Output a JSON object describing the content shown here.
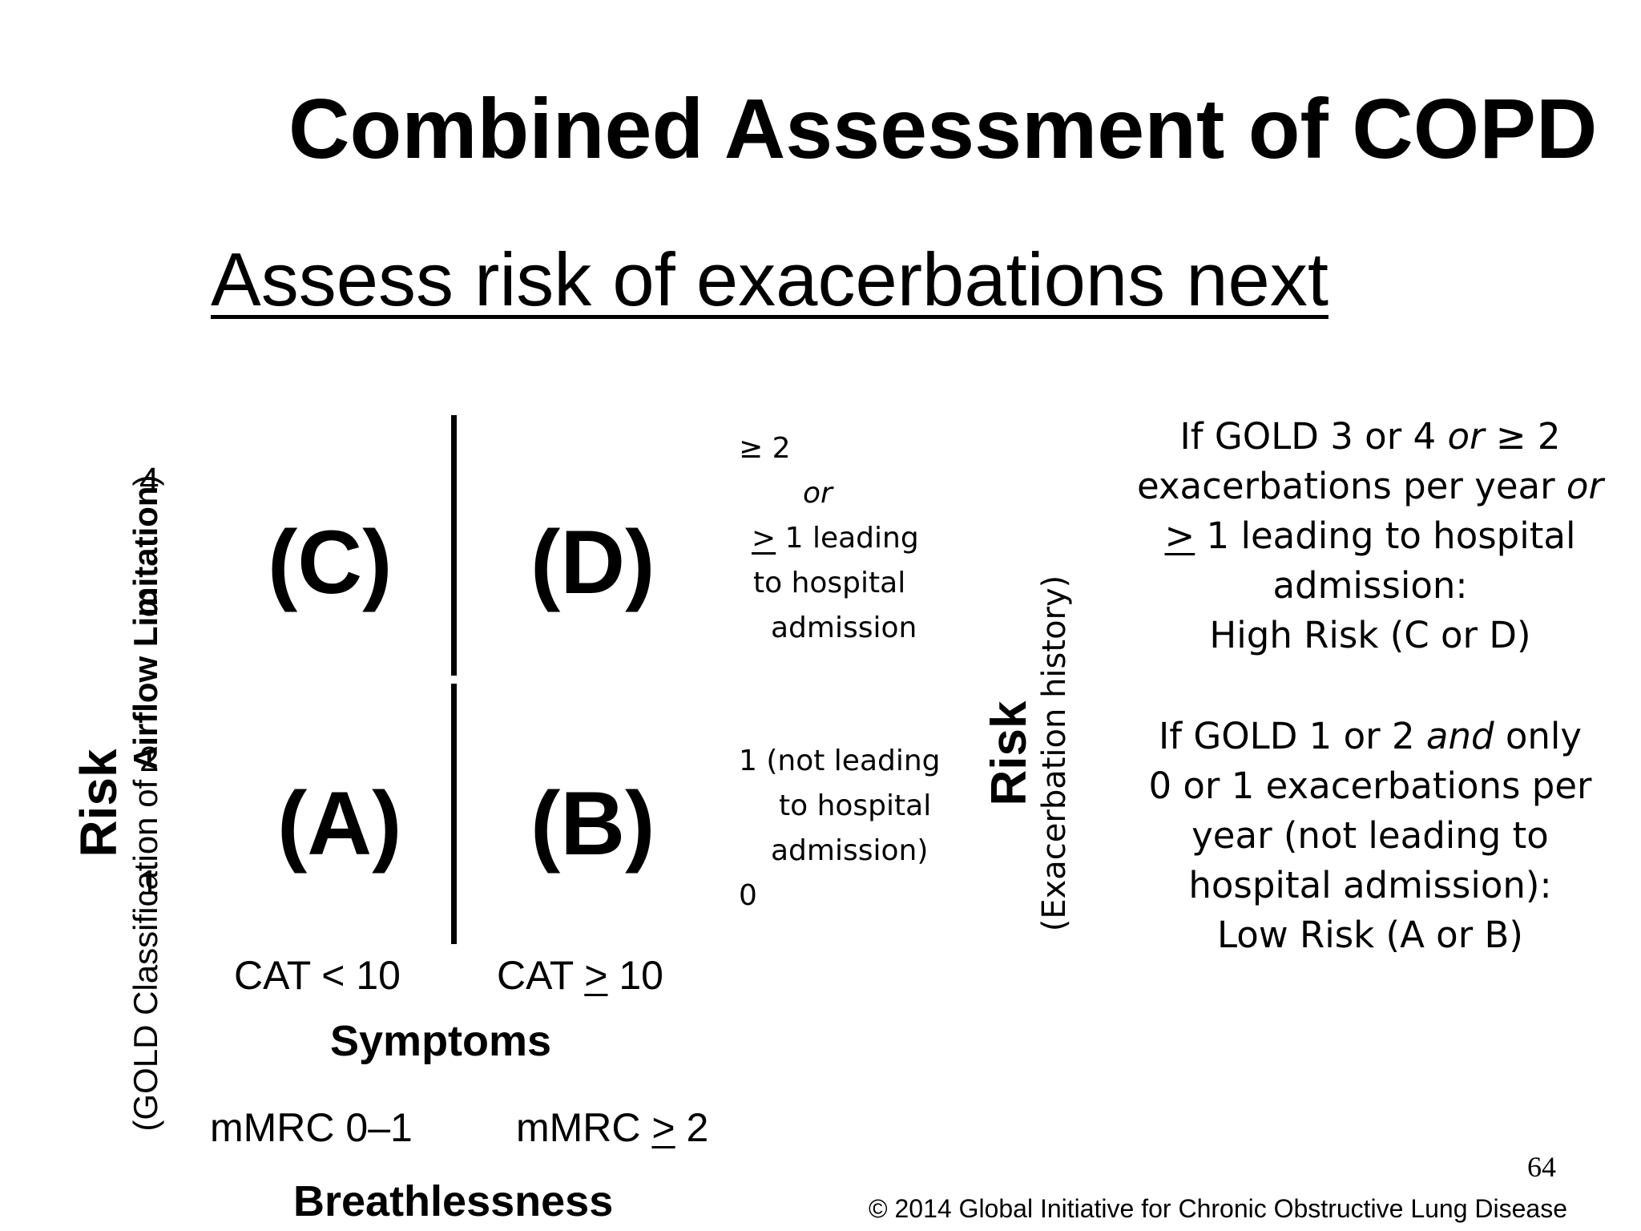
{
  "title": "Combined Assessment of COPD",
  "subtitle": "Assess risk of exacerbations next",
  "left_axis": {
    "risk_label": "Risk",
    "gold_prefix": "(GOLD Classification of ",
    "gold_bold": "Airflow Limitation",
    "gold_suffix": ")",
    "ticks": [
      "4",
      "3",
      "2",
      "1"
    ]
  },
  "grid": {
    "cells": {
      "c": "(C)",
      "d": "(D)",
      "a": "(A)",
      "b": "(B)"
    }
  },
  "symptoms": {
    "cat_low": "CAT < 10",
    "cat_high_prefix": "CAT ",
    "cat_high_symbol": ">",
    "cat_high_suffix": " 10",
    "label": "Symptoms"
  },
  "breathlessness": {
    "mmrc_low": "mMRC  0–1",
    "mmrc_high_prefix": "mMRC ",
    "mmrc_high_symbol": ">",
    "mmrc_high_suffix": " 2",
    "label": "Breathlessness"
  },
  "exacerbation_scale": {
    "top_value": "≥ 2",
    "top_or": "or",
    "top_symbol": ">",
    "top_rest": " 1  leading",
    "top_line3": "to  hospital",
    "top_line4": "admission",
    "mid_line1": "1  (not leading",
    "mid_line2": "to hospital",
    "mid_line3": "admission)",
    "bottom_value": "0"
  },
  "right_axis": {
    "risk_label": "Risk",
    "history_label": "(Exacerbation history)"
  },
  "criteria": {
    "high": {
      "l1_a": "If GOLD 3 or 4 ",
      "l1_or": "or",
      "l1_b": "  ≥ 2",
      "l2_a": "exacerbations per year ",
      "l2_or": "or",
      "l3_symbol": ">",
      "l3_rest": " 1 leading to hospital",
      "l4": "admission:",
      "l5": "High Risk (C or D)"
    },
    "low": {
      "l1_a": "If GOLD 1 or 2 ",
      "l1_and": "and",
      "l1_b": " only",
      "l2": "0 or 1 exacerbations per",
      "l3": "year (not leading to",
      "l4": "hospital admission):",
      "l5": "Low Risk (A or B)"
    }
  },
  "page_number": "64",
  "copyright": "© 2014 Global Initiative for Chronic Obstructive Lung Disease"
}
